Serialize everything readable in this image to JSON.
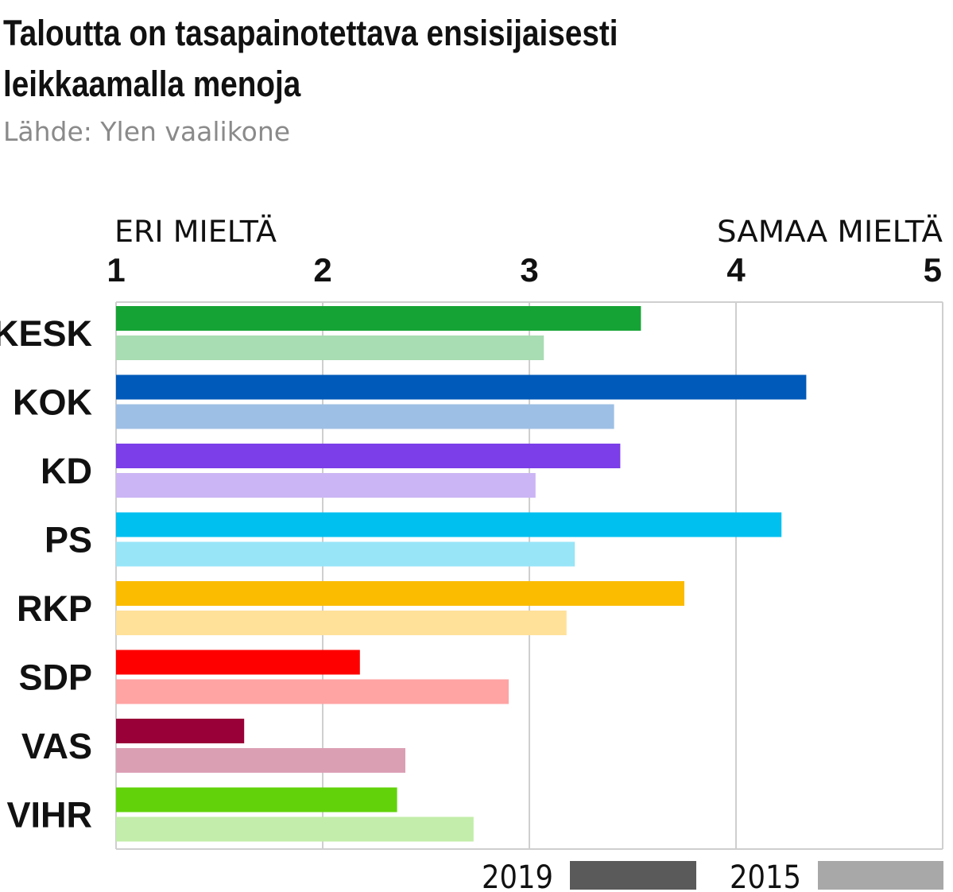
{
  "header": {
    "title_line1": "Taloutta on tasapainotettava ensisijaisesti",
    "title_line2": "leikkaamalla menoja",
    "source": "Lähde: Ylen vaalikone"
  },
  "chart_data": {
    "type": "bar",
    "orientation": "horizontal",
    "title": "Taloutta on tasapainotettava ensisijaisesti leikkaamalla menoja",
    "subtitle": "Lähde: Ylen vaalikone",
    "categories": [
      "KESK",
      "KOK",
      "KD",
      "PS",
      "RKP",
      "SDP",
      "VAS",
      "VIHR"
    ],
    "series": [
      {
        "name": "2019",
        "values": [
          3.54,
          4.34,
          3.44,
          4.22,
          3.75,
          2.18,
          1.62,
          2.36
        ]
      },
      {
        "name": "2015",
        "values": [
          3.07,
          3.41,
          3.03,
          3.22,
          3.18,
          2.9,
          2.4,
          2.73
        ]
      }
    ],
    "bar_colors": {
      "2019": [
        "#16a335",
        "#005ab9",
        "#7b3ee8",
        "#00c0f0",
        "#fbbc00",
        "#ff0000",
        "#990038",
        "#62d30a"
      ],
      "2015": [
        "#a8dcb2",
        "#9ebfe5",
        "#cbb5f4",
        "#98e5f8",
        "#ffe19a",
        "#ffa3a3",
        "#db9fb4",
        "#c3edaa"
      ]
    },
    "xlim": [
      1,
      5
    ],
    "xticks": [
      1,
      2,
      3,
      4,
      5
    ],
    "x_tick_labels": [
      "1",
      "2",
      "3",
      "4",
      "5"
    ],
    "x_end_labels": {
      "low": "ERI MIELTÄ",
      "high": "SAMAA MIELTÄ"
    },
    "grid": true,
    "legend": {
      "placement": "bottom-right",
      "items": [
        {
          "label": "2019",
          "color": "#5a5a5a"
        },
        {
          "label": "2015",
          "color": "#a8a8a8"
        }
      ]
    }
  }
}
